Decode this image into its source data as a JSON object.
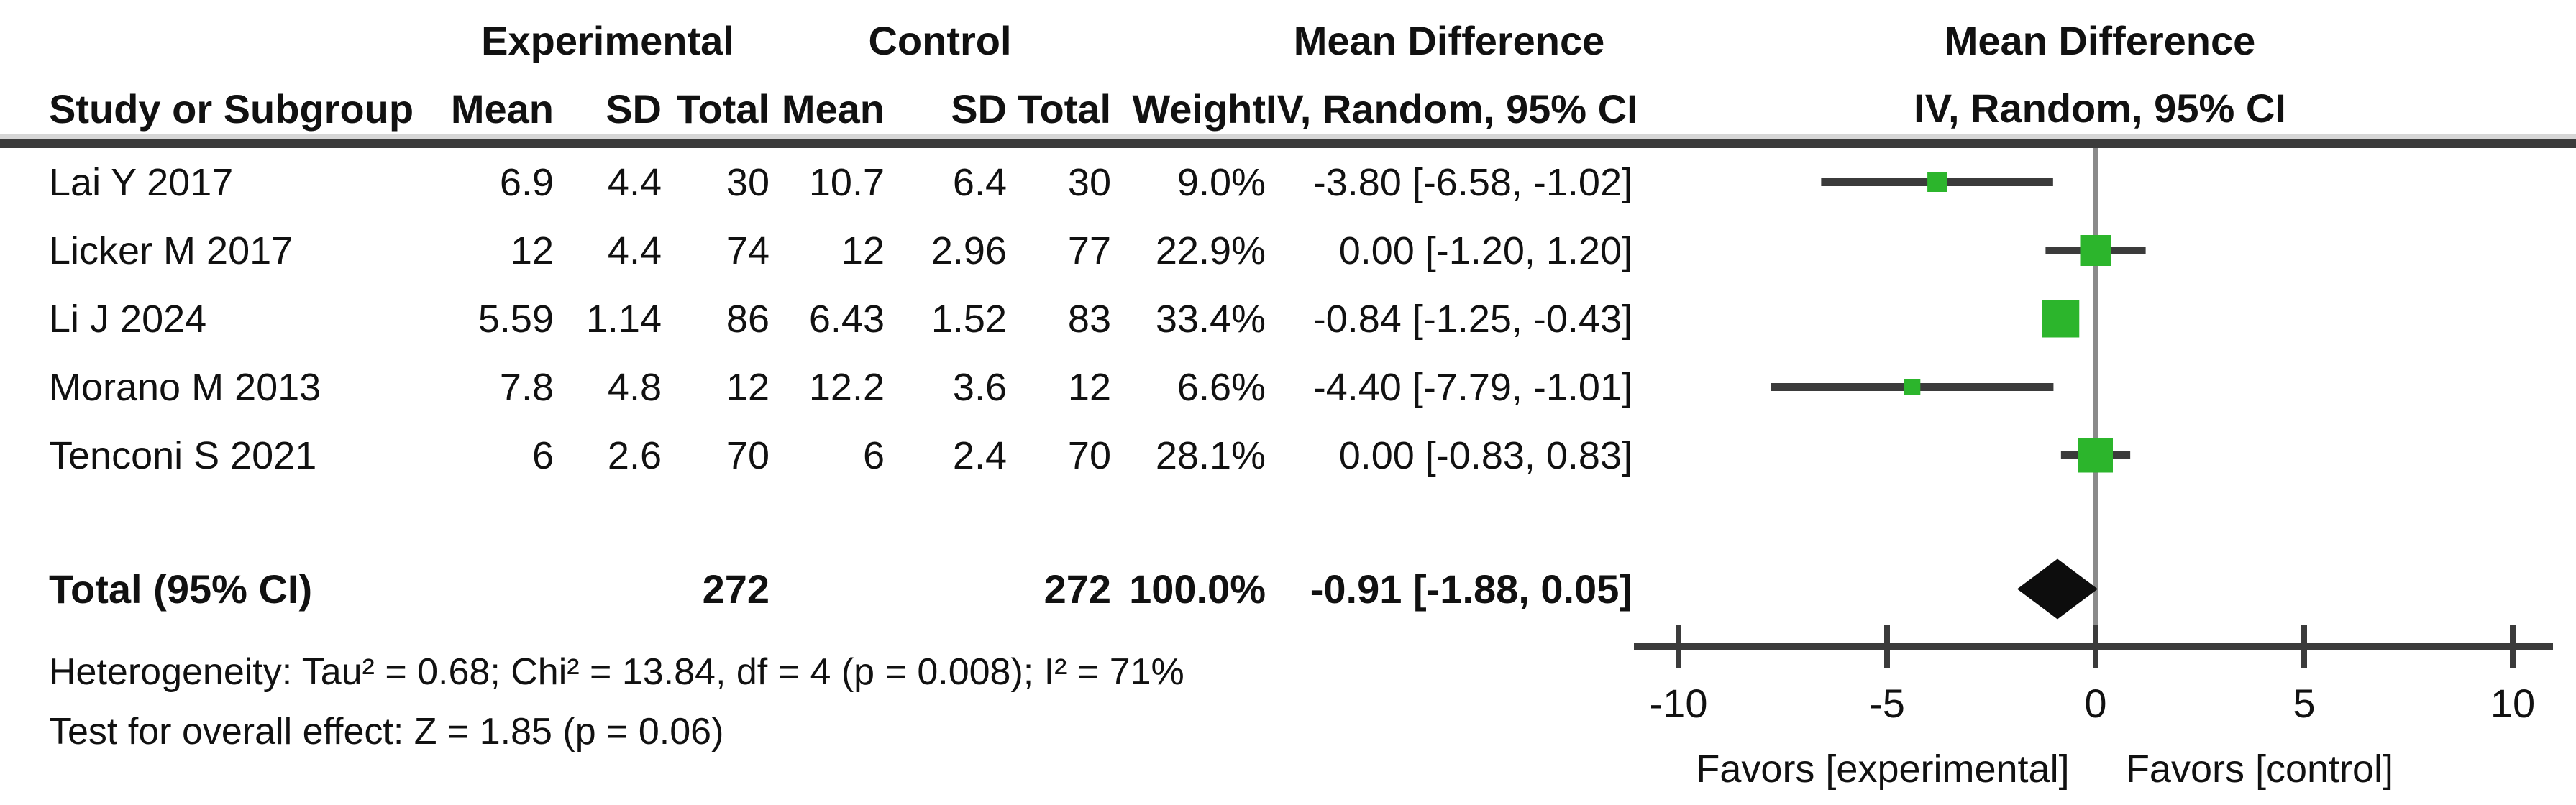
{
  "figure": {
    "group1_header": "Experimental",
    "group2_header": "Control",
    "effect_header": "Mean Difference",
    "effect_subheader": "IV, Random, 95% CI",
    "plot_header": "Mean Difference",
    "plot_subheader": "IV, Random, 95% CI"
  },
  "table": {
    "columns": {
      "study": "Study or Subgroup",
      "mean_exp": "Mean",
      "sd_exp": "SD",
      "total_exp": "Total",
      "mean_ctl": "Mean",
      "sd_ctl": "SD",
      "total_ctl": "Total",
      "weight": "Weight",
      "ci": "IV, Random, 95% CI"
    },
    "rows": [
      {
        "study": "Lai Y 2017",
        "cells": [
          "6.9",
          "4.4",
          "30",
          "10.7",
          "6.4",
          "30",
          "9.0%",
          "-3.80 [-6.58, -1.02]"
        ]
      },
      {
        "study": "Licker M 2017",
        "cells": [
          "12",
          "4.4",
          "74",
          "12",
          "2.96",
          "77",
          "22.9%",
          "0.00 [-1.20, 1.20]"
        ]
      },
      {
        "study": "Li J 2024",
        "cells": [
          "5.59",
          "1.14",
          "86",
          "6.43",
          "1.52",
          "83",
          "33.4%",
          "-0.84 [-1.25, -0.43]"
        ]
      },
      {
        "study": "Morano M 2013",
        "cells": [
          "7.8",
          "4.8",
          "12",
          "12.2",
          "3.6",
          "12",
          "6.6%",
          "-4.40 [-7.79, -1.01]"
        ]
      },
      {
        "study": "Tenconi S 2021",
        "cells": [
          "6",
          "2.6",
          "70",
          "6",
          "2.4",
          "70",
          "28.1%",
          "0.00 [-0.83, 0.83]"
        ]
      }
    ],
    "total": {
      "label": "Total (95% CI)",
      "total_exp": "272",
      "total_ctl": "272",
      "weight": "100.0%",
      "ci": "-0.91 [-1.88, 0.05]"
    },
    "heterogeneity": "Heterogeneity: Tau² = 0.68; Chi² = 13.84, df = 4 (p = 0.008); I² = 71%",
    "overall_effect": "Test for overall effect: Z = 1.85 (p = 0.06)"
  },
  "chart_data": {
    "type": "forest",
    "effect_measure": "Mean Difference",
    "method": "IV, Random, 95% CI",
    "x_axis": {
      "min": -10,
      "max": 10,
      "ticks": [
        -10,
        -5,
        0,
        5,
        10
      ],
      "tick_labels": [
        "-10",
        "-5",
        "0",
        "5",
        "10"
      ]
    },
    "studies": [
      {
        "name": "Lai Y 2017",
        "md": -3.8,
        "ci_low": -6.58,
        "ci_high": -1.02,
        "weight_pct": 9.0
      },
      {
        "name": "Licker M 2017",
        "md": 0.0,
        "ci_low": -1.2,
        "ci_high": 1.2,
        "weight_pct": 22.9
      },
      {
        "name": "Li J 2024",
        "md": -0.84,
        "ci_low": -1.25,
        "ci_high": -0.43,
        "weight_pct": 33.4
      },
      {
        "name": "Morano M 2013",
        "md": -4.4,
        "ci_low": -7.79,
        "ci_high": -1.01,
        "weight_pct": 6.6
      },
      {
        "name": "Tenconi S 2021",
        "md": 0.0,
        "ci_low": -0.83,
        "ci_high": 0.83,
        "weight_pct": 28.1
      }
    ],
    "total": {
      "label": "Total (95% CI)",
      "md": -0.91,
      "ci_low": -1.88,
      "ci_high": 0.05
    },
    "favors_left": "Favors [experimental]",
    "favors_right": "Favors [control]",
    "colors": {
      "marker_green": "#2cb52c",
      "ci_line": "#3b3b3b",
      "zero_line": "#8a8a8a",
      "diamond": "#0d0d0d"
    }
  }
}
